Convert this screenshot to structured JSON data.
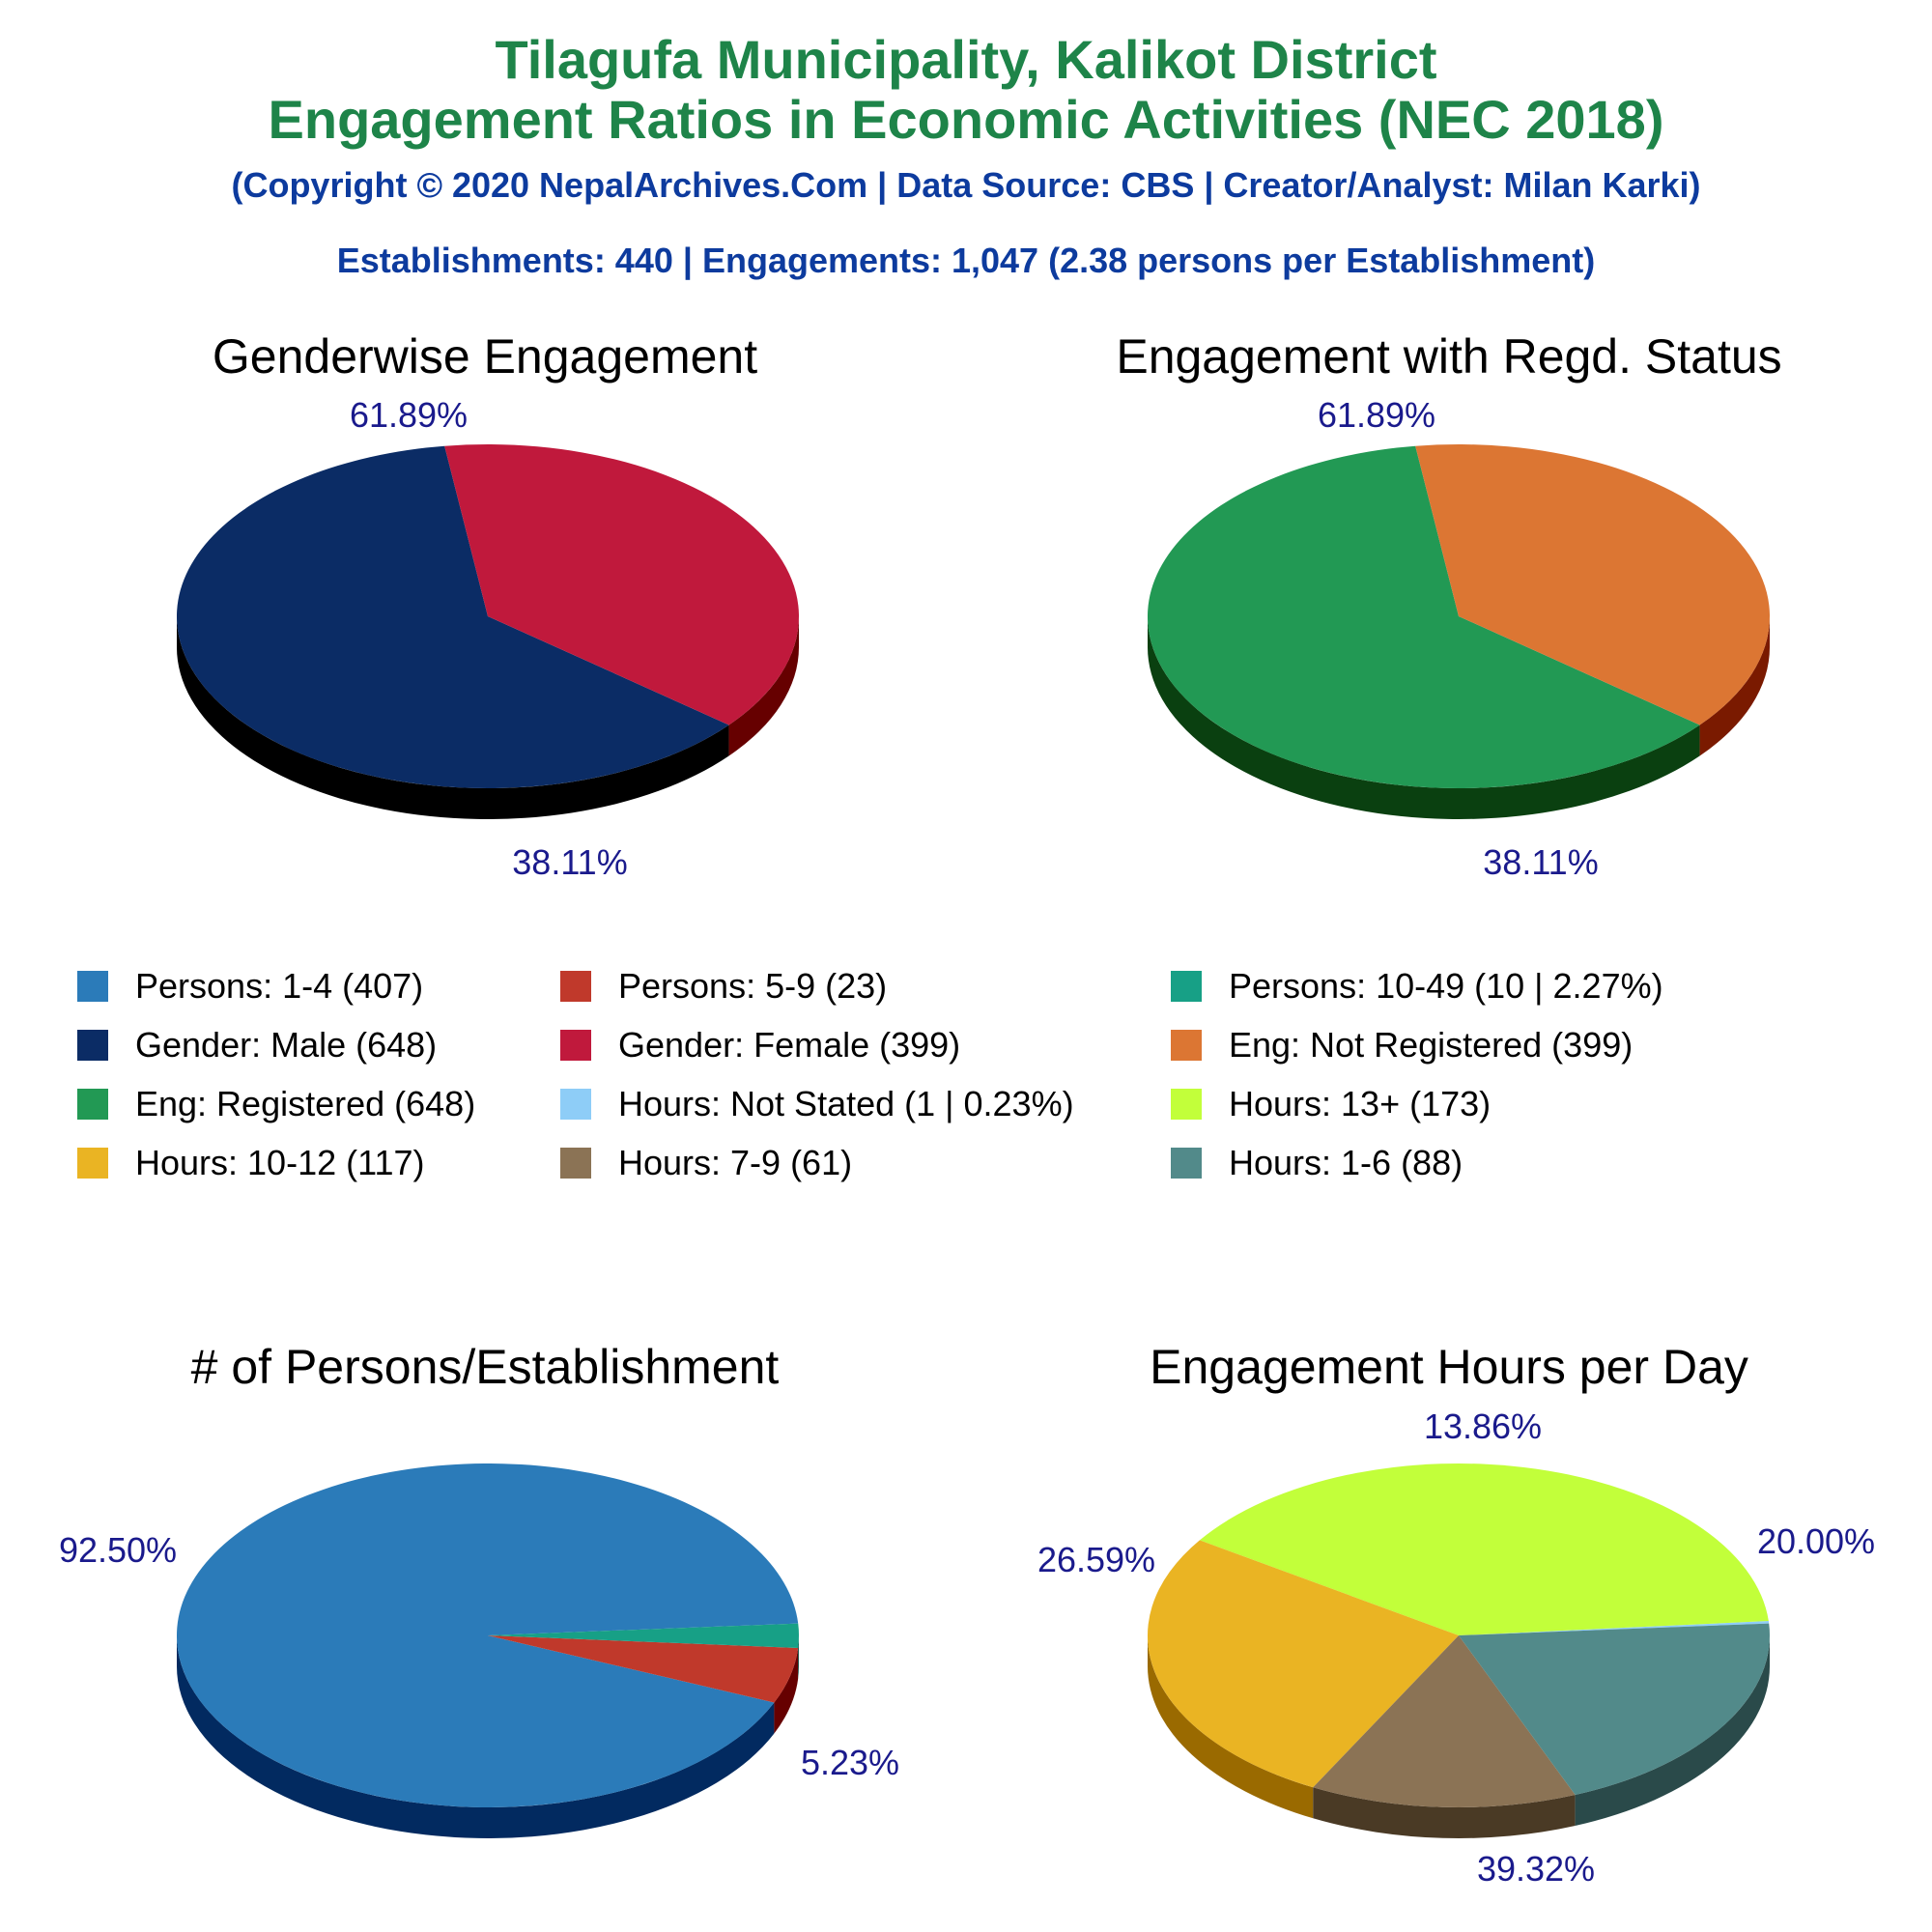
{
  "header": {
    "title_line1": "Tilagufa Municipality, Kalikot District",
    "title_line2": "Engagement Ratios in Economic Activities (NEC 2018)",
    "copyright": "(Copyright © 2020 NepalArchives.Com | Data Source: CBS | Creator/Analyst: Milan Karki)",
    "summary": "Establishments: 440 | Engagements: 1,047 (2.38 persons per Establishment)"
  },
  "legend": [
    {
      "label": "Persons: 1-4 (407)",
      "color": "#2b7bb9"
    },
    {
      "label": "Persons: 5-9 (23)",
      "color": "#c0392b"
    },
    {
      "label": "Persons: 10-49 (10 | 2.27%)",
      "color": "#17a086"
    },
    {
      "label": "Gender: Male (648)",
      "color": "#0b2c65"
    },
    {
      "label": "Gender: Female (399)",
      "color": "#c0193c"
    },
    {
      "label": "Eng: Not Registered (399)",
      "color": "#dc7633"
    },
    {
      "label": "Eng: Registered (648)",
      "color": "#229954"
    },
    {
      "label": "Hours: Not Stated (1 | 0.23%)",
      "color": "#8ecdf7"
    },
    {
      "label": "Hours: 13+ (173)",
      "color": "#c2ff3a"
    },
    {
      "label": "Hours: 10-12 (117)",
      "color": "#eab423"
    },
    {
      "label": "Hours: 7-9 (61)",
      "color": "#8b7355"
    },
    {
      "label": "Hours: 1-6 (88)",
      "color": "#528a8a"
    }
  ],
  "chart_data": [
    {
      "type": "pie",
      "title": "Genderwise Engagement",
      "slices": [
        {
          "name": "Gender: Male",
          "value": 648,
          "percent": 61.89,
          "label": "61.89%",
          "color": "#0b2c65",
          "side_color": "#000000"
        },
        {
          "name": "Gender: Female",
          "value": 399,
          "percent": 38.11,
          "label": "38.11%",
          "color": "#c0193c",
          "side_color": "#660000"
        }
      ]
    },
    {
      "type": "pie",
      "title": "Engagement with Regd. Status",
      "slices": [
        {
          "name": "Eng: Registered",
          "value": 648,
          "percent": 61.89,
          "label": "61.89%",
          "color": "#229954",
          "side_color": "#0a4010"
        },
        {
          "name": "Eng: Not Registered",
          "value": 399,
          "percent": 38.11,
          "label": "38.11%",
          "color": "#dc7633",
          "side_color": "#7a1a00"
        }
      ]
    },
    {
      "type": "pie",
      "title": "# of Persons/Establishment",
      "slices": [
        {
          "name": "Persons: 1-4",
          "value": 407,
          "percent": 92.5,
          "label": "92.50%",
          "color": "#2b7bb9",
          "side_color": "#022a60"
        },
        {
          "name": "Persons: 5-9",
          "value": 23,
          "percent": 5.23,
          "label": "5.23%",
          "color": "#c0392b",
          "side_color": "#660000"
        },
        {
          "name": "Persons: 10-49",
          "value": 10,
          "percent": 2.27,
          "label": "",
          "color": "#17a086",
          "side_color": "#0a4a40"
        }
      ]
    },
    {
      "type": "pie",
      "title": "Engagement Hours per Day",
      "slices": [
        {
          "name": "Hours: Not Stated",
          "value": 1,
          "percent": 0.23,
          "label": "",
          "color": "#8ecdf7",
          "side_color": "#3a7aa0"
        },
        {
          "name": "Hours: 13+",
          "value": 173,
          "percent": 39.32,
          "label": "39.32%",
          "color": "#c2ff3a",
          "side_color": "#65a300"
        },
        {
          "name": "Hours: 10-12",
          "value": 117,
          "percent": 26.59,
          "label": "26.59%",
          "color": "#eab423",
          "side_color": "#9a6a00"
        },
        {
          "name": "Hours: 7-9",
          "value": 61,
          "percent": 13.86,
          "label": "13.86%",
          "color": "#8b7355",
          "side_color": "#4a3a25"
        },
        {
          "name": "Hours: 1-6",
          "value": 88,
          "percent": 20.0,
          "label": "20.00%",
          "color": "#528a8a",
          "side_color": "#2a4a4a"
        }
      ]
    }
  ]
}
